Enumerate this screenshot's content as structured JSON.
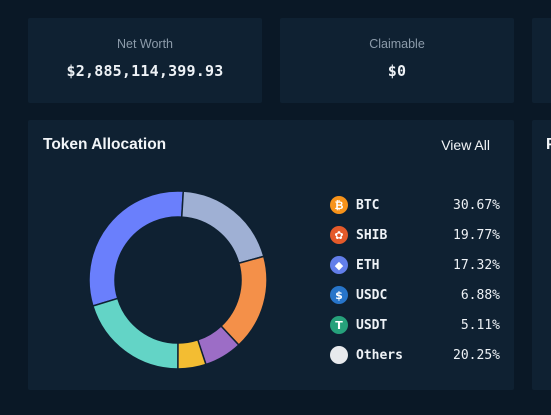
{
  "summary": {
    "net_worth_label": "Net Worth",
    "net_worth_value": "$2,885,114,399.93",
    "claimable_label": "Claimable",
    "claimable_value": "$0"
  },
  "allocation": {
    "title": "Token Allocation",
    "view_all_label": "View All",
    "right_panel_partial_title": "P"
  },
  "chart_data": {
    "type": "pie",
    "style": "donut",
    "categories": [
      "BTC",
      "SHIB",
      "ETH",
      "USDC",
      "USDT",
      "Others"
    ],
    "values": [
      30.67,
      19.77,
      17.32,
      6.88,
      5.11,
      20.25
    ],
    "value_labels": [
      "30.67%",
      "19.77%",
      "17.32%",
      "6.88%",
      "5.11%",
      "20.25%"
    ],
    "legend_position": "right",
    "colors": {
      "BTC": "#6a7ffc",
      "SHIB": "#9fb0d4",
      "ETH": "#f49049",
      "USDC": "#9c6dc6",
      "USDT": "#f3bd32",
      "Others": "#63d4c6"
    }
  },
  "legend_icons": [
    {
      "name": "btc-icon",
      "glyph": "₿",
      "color": "#f7931a"
    },
    {
      "name": "shib-icon",
      "glyph": "✿",
      "color": "#e45a2a"
    },
    {
      "name": "eth-icon",
      "glyph": "◆",
      "color": "#627eea"
    },
    {
      "name": "usdc-icon",
      "glyph": "$",
      "color": "#2775ca"
    },
    {
      "name": "usdt-icon",
      "glyph": "T",
      "color": "#26a17b"
    },
    {
      "name": "others-icon",
      "glyph": "",
      "color": "#e8eaed"
    }
  ],
  "colors": {
    "page_background": "#0a1826",
    "card_background": "#0f2132",
    "text_primary": "#eef2f6",
    "text_muted": "#8c9baa"
  }
}
